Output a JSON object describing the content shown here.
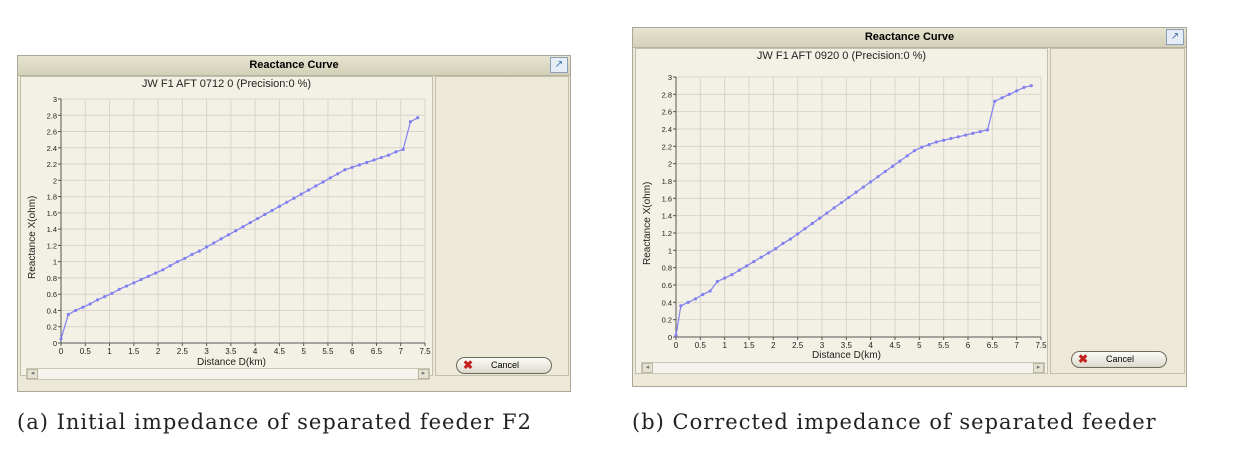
{
  "panels": [
    {
      "window_title": "Reactance Curve",
      "cancel_label": "Cancel",
      "caption": "(a) Initial impedance of separated feeder F2",
      "chart_data": {
        "type": "line",
        "title": "JW F1 AFT 0712 0 (Precision:0 %)",
        "xlabel": "Distance D(km)",
        "ylabel": "Reactance X(ohm)",
        "xlim": [
          0,
          7.5
        ],
        "ylim": [
          0,
          3
        ],
        "xticks": [
          "0",
          "0.5",
          "1",
          "1.5",
          "2",
          "2.5",
          "3",
          "3.5",
          "4",
          "4.5",
          "5",
          "5.5",
          "6",
          "6.5",
          "7",
          "7.5"
        ],
        "yticks": [
          "0",
          "0.2",
          "0.4",
          "0.6",
          "0.8",
          "1",
          "1.2",
          "1.4",
          "1.6",
          "1.8",
          "2",
          "2.2",
          "2.4",
          "2.6",
          "2.8",
          "3"
        ],
        "grid": true,
        "color": "#8080f0",
        "x": [
          0,
          0.15,
          0.3,
          0.45,
          0.6,
          0.75,
          0.9,
          1.05,
          1.2,
          1.35,
          1.5,
          1.65,
          1.8,
          1.95,
          2.1,
          2.25,
          2.4,
          2.55,
          2.7,
          2.85,
          3.0,
          3.15,
          3.3,
          3.45,
          3.6,
          3.75,
          3.9,
          4.05,
          4.2,
          4.35,
          4.5,
          4.65,
          4.8,
          4.95,
          5.1,
          5.25,
          5.4,
          5.55,
          5.7,
          5.85,
          6.0,
          6.15,
          6.3,
          6.45,
          6.6,
          6.75,
          6.9,
          7.05,
          7.2,
          7.35
        ],
        "y": [
          0.05,
          0.35,
          0.4,
          0.44,
          0.48,
          0.53,
          0.57,
          0.61,
          0.66,
          0.7,
          0.74,
          0.78,
          0.82,
          0.86,
          0.9,
          0.95,
          1.0,
          1.04,
          1.09,
          1.13,
          1.18,
          1.23,
          1.28,
          1.33,
          1.38,
          1.43,
          1.48,
          1.53,
          1.58,
          1.63,
          1.68,
          1.73,
          1.78,
          1.83,
          1.88,
          1.93,
          1.98,
          2.03,
          2.08,
          2.13,
          2.16,
          2.19,
          2.22,
          2.25,
          2.28,
          2.31,
          2.35,
          2.38,
          2.72,
          2.77
        ]
      }
    },
    {
      "window_title": "Reactance Curve",
      "cancel_label": "Cancel",
      "caption": "(b) Corrected impedance of separated feeder",
      "chart_data": {
        "type": "line",
        "title": "JW F1 AFT 0920 0 (Precision:0 %)",
        "xlabel": "Distance D(km)",
        "ylabel": "Reactance X(ohm)",
        "xlim": [
          0,
          7.5
        ],
        "ylim": [
          0,
          3
        ],
        "xticks": [
          "0",
          "0.5",
          "1",
          "1.5",
          "2",
          "2.5",
          "3",
          "3.5",
          "4",
          "4.5",
          "5",
          "5.5",
          "6",
          "6.5",
          "7",
          "7.5"
        ],
        "yticks": [
          "0",
          "0.2",
          "0.4",
          "0.6",
          "0.8",
          "1",
          "1.2",
          "1.4",
          "1.6",
          "1.8",
          "2",
          "2.2",
          "2.4",
          "2.6",
          "2.8",
          "3"
        ],
        "grid": true,
        "color": "#8080f0",
        "x": [
          0,
          0.1,
          0.25,
          0.4,
          0.55,
          0.7,
          0.85,
          1.0,
          1.15,
          1.3,
          1.45,
          1.6,
          1.75,
          1.9,
          2.05,
          2.2,
          2.35,
          2.5,
          2.65,
          2.8,
          2.95,
          3.1,
          3.25,
          3.4,
          3.55,
          3.7,
          3.85,
          4.0,
          4.15,
          4.3,
          4.45,
          4.6,
          4.75,
          4.9,
          5.05,
          5.2,
          5.35,
          5.5,
          5.65,
          5.8,
          5.95,
          6.1,
          6.25,
          6.4,
          6.55,
          6.7,
          6.85,
          7.0,
          7.15,
          7.3
        ],
        "y": [
          0.02,
          0.36,
          0.4,
          0.44,
          0.49,
          0.53,
          0.64,
          0.68,
          0.72,
          0.77,
          0.82,
          0.87,
          0.92,
          0.97,
          1.02,
          1.08,
          1.13,
          1.19,
          1.25,
          1.31,
          1.37,
          1.43,
          1.49,
          1.55,
          1.61,
          1.67,
          1.73,
          1.79,
          1.85,
          1.91,
          1.97,
          2.03,
          2.09,
          2.15,
          2.19,
          2.22,
          2.25,
          2.27,
          2.29,
          2.31,
          2.33,
          2.35,
          2.37,
          2.39,
          2.72,
          2.76,
          2.8,
          2.84,
          2.88,
          2.9
        ]
      }
    }
  ]
}
